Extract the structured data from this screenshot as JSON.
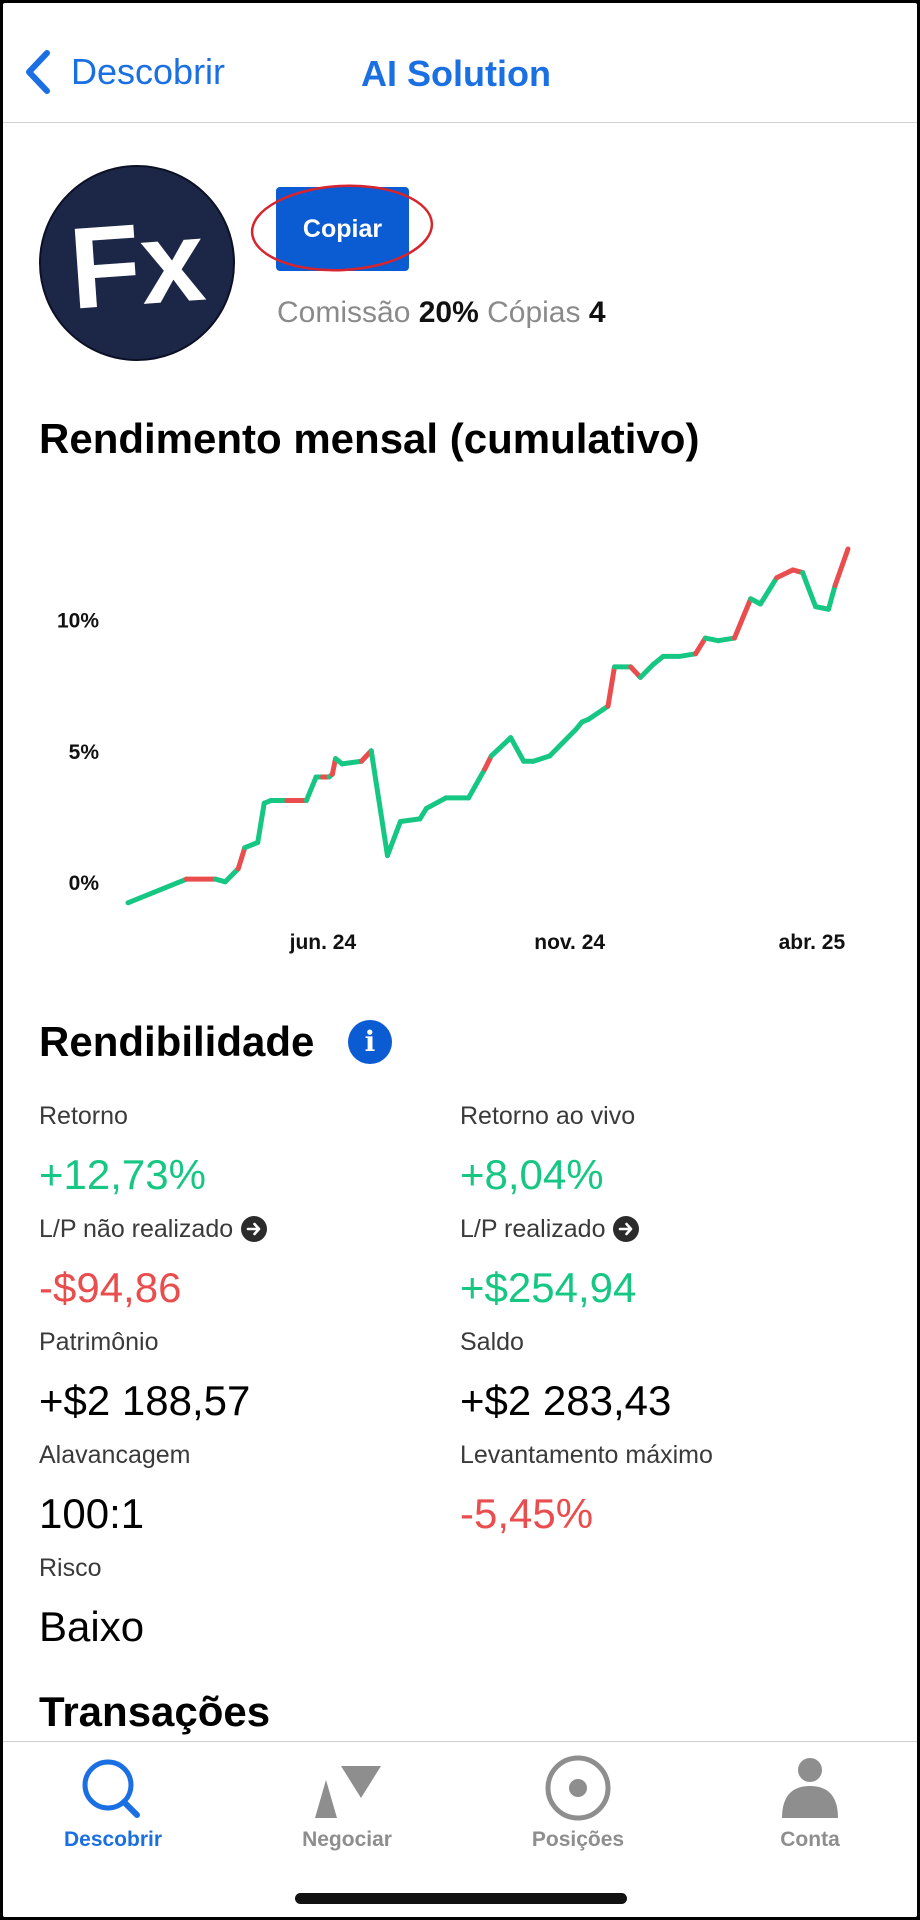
{
  "header": {
    "back_label": "Descobrir",
    "title": "AI Solution"
  },
  "profile": {
    "avatar_text": "Fx",
    "copy_label": "Copiar",
    "commission_label": "Comissão",
    "commission_value": "20%",
    "copies_label": "Cópias",
    "copies_value": "4"
  },
  "chart_section": {
    "title": "Rendimento mensal (cumulativo)"
  },
  "chart_data": {
    "type": "line",
    "title": "Rendimento mensal (cumulativo)",
    "y_ticks": [
      "0%",
      "5%",
      "10%"
    ],
    "x_ticks": [
      "jun. 24",
      "nov. 24",
      "abr. 25"
    ],
    "ylim": [
      -1,
      13.5
    ],
    "y_unit": "%",
    "colors": {
      "up": "#16c784",
      "down": "#ea4d4d"
    },
    "x": [
      0,
      0.08,
      0.18,
      0.27,
      0.3,
      0.34,
      0.36,
      0.4,
      0.42,
      0.44,
      0.49,
      0.55,
      0.58,
      0.6,
      0.62,
      0.63,
      0.64,
      0.66,
      0.72,
      0.75,
      0.8,
      0.84,
      0.9,
      0.92,
      0.98,
      1.05,
      1.1,
      1.12,
      1.18,
      1.22,
      1.25,
      1.3,
      1.38,
      1.4,
      1.42,
      1.48,
      1.5,
      1.55,
      1.58,
      1.62,
      1.65,
      1.7,
      1.75,
      1.78,
      1.82,
      1.87,
      1.92,
      1.95,
      2.0,
      2.05,
      2.08,
      2.12,
      2.16,
      2.18,
      2.22
    ],
    "values": [
      -0.8,
      -0.4,
      0.1,
      0.1,
      0.0,
      0.5,
      1.3,
      1.5,
      3.0,
      3.1,
      3.1,
      3.1,
      4.0,
      4.0,
      4.0,
      4.1,
      4.7,
      4.5,
      4.6,
      5.0,
      1.0,
      2.3,
      2.4,
      2.8,
      3.2,
      3.2,
      4.3,
      4.8,
      5.5,
      4.6,
      4.6,
      4.8,
      5.8,
      6.1,
      6.2,
      6.7,
      8.2,
      8.2,
      7.8,
      8.3,
      8.6,
      8.6,
      8.7,
      9.3,
      9.2,
      9.3,
      10.8,
      10.6,
      11.6,
      11.9,
      11.8,
      10.5,
      10.4,
      11.3,
      12.7
    ],
    "directions": [
      "up",
      "up",
      "up",
      "down",
      "up",
      "up",
      "down",
      "up",
      "up",
      "up",
      "up",
      "down",
      "up",
      "up",
      "down",
      "up",
      "down",
      "up",
      "up",
      "down",
      "up",
      "up",
      "up",
      "up",
      "up",
      "up",
      "up",
      "down",
      "up",
      "up",
      "up",
      "up",
      "up",
      "up",
      "up",
      "up",
      "down",
      "up",
      "down",
      "up",
      "up",
      "up",
      "up",
      "down",
      "up",
      "up",
      "down",
      "up",
      "up",
      "down",
      "down",
      "up",
      "up",
      "up",
      "down"
    ]
  },
  "performance": {
    "title": "Rendibilidade",
    "metrics": [
      {
        "label": "Retorno",
        "value": "+12,73%"
      },
      {
        "label": "Retorno ao vivo",
        "value": "+8,04%"
      },
      {
        "label": "L/P não realizado",
        "value": "-$94,86"
      },
      {
        "label": "L/P realizado",
        "value": "+$254,94"
      },
      {
        "label": "Patrimônio",
        "value": "+$2 188,57"
      },
      {
        "label": "Saldo",
        "value": "+$2 283,43"
      },
      {
        "label": "Alavancagem",
        "value": "100:1"
      },
      {
        "label": "Levantamento máximo",
        "value": "-5,45%"
      },
      {
        "label": "Risco",
        "value": "Baixo"
      }
    ]
  },
  "transactions": {
    "title": "Transações"
  },
  "tabbar": {
    "tabs": [
      {
        "label": "Descobrir",
        "icon": "search-icon",
        "active": true
      },
      {
        "label": "Negociar",
        "icon": "trade-triangles-icon",
        "active": false
      },
      {
        "label": "Posições",
        "icon": "positions-circle-icon",
        "active": false
      },
      {
        "label": "Conta",
        "icon": "account-person-icon",
        "active": false
      }
    ]
  }
}
